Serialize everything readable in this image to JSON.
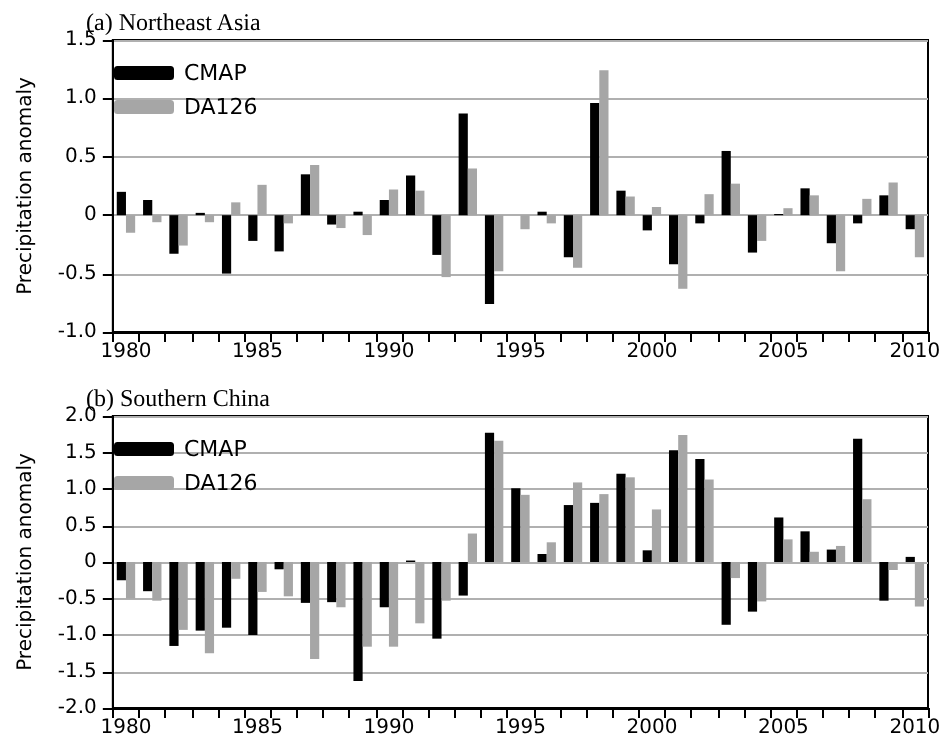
{
  "chart_data": [
    {
      "type": "bar",
      "title": "(a) Northeast Asia",
      "ylabel": "Precipitation anomaly",
      "categories": [
        "1980",
        null,
        null,
        null,
        null,
        "1985",
        null,
        null,
        null,
        null,
        "1990",
        null,
        null,
        null,
        null,
        "1995",
        null,
        null,
        null,
        null,
        "2000",
        null,
        null,
        null,
        null,
        "2005",
        null,
        null,
        null,
        null,
        "2010"
      ],
      "series": [
        {
          "name": "CMAP",
          "color": "#000000",
          "values": [
            0.2,
            0.13,
            -0.33,
            0.02,
            -0.5,
            -0.22,
            -0.31,
            0.35,
            -0.08,
            0.03,
            0.13,
            0.34,
            -0.34,
            0.87,
            -0.76,
            0,
            0.03,
            -0.36,
            0.96,
            0.21,
            -0.13,
            -0.42,
            -0.07,
            0.55,
            -0.32,
            0.01,
            0.23,
            -0.24,
            -0.07,
            0.17,
            -0.12
          ]
        },
        {
          "name": "DA126",
          "color": "#a6a6a6",
          "values": [
            -0.15,
            -0.06,
            -0.26,
            -0.06,
            0.11,
            0.26,
            -0.07,
            0.43,
            -0.11,
            -0.17,
            0.22,
            0.21,
            -0.53,
            0.4,
            -0.48,
            -0.12,
            -0.07,
            -0.45,
            1.24,
            0.16,
            0.07,
            -0.63,
            0.18,
            0.27,
            -0.22,
            0.06,
            0.17,
            -0.48,
            0.14,
            0.28,
            -0.36
          ]
        }
      ],
      "ylim": [
        -1,
        1.5
      ],
      "yticks": [
        {
          "value": -1,
          "label": "-1.0"
        },
        -0.5,
        0,
        0.5,
        {
          "value": 1,
          "label": "1.0"
        },
        1.5
      ],
      "grid": "y",
      "legend": "top left"
    },
    {
      "type": "bar",
      "title": "(b) Southern China",
      "ylabel": "Precipitation anomaly",
      "categories": [
        "1980",
        null,
        null,
        null,
        null,
        "1985",
        null,
        null,
        null,
        null,
        "1990",
        null,
        null,
        null,
        null,
        "1995",
        null,
        null,
        null,
        null,
        "2000",
        null,
        null,
        null,
        null,
        "2005",
        null,
        null,
        null,
        null,
        "2010"
      ],
      "series": [
        {
          "name": "CMAP",
          "color": "#000000",
          "values": [
            -0.25,
            -0.4,
            -1.15,
            -0.94,
            -0.9,
            -1.0,
            -0.1,
            -0.56,
            -0.55,
            -1.63,
            -0.62,
            0.02,
            -1.05,
            -0.46,
            1.77,
            1.01,
            0.11,
            0.78,
            0.81,
            1.21,
            0.16,
            1.53,
            1.41,
            -0.86,
            -0.68,
            0.61,
            0.42,
            0.17,
            1.69,
            -0.53,
            0.07
          ]
        },
        {
          "name": "DA126",
          "color": "#a6a6a6",
          "values": [
            -0.5,
            -0.53,
            -0.93,
            -1.25,
            -0.23,
            -0.41,
            -0.47,
            -1.33,
            -0.62,
            -1.16,
            -1.16,
            -0.84,
            -0.53,
            0.39,
            1.66,
            0.92,
            0.27,
            1.09,
            0.93,
            1.16,
            0.72,
            1.74,
            1.13,
            -0.22,
            -0.54,
            0.31,
            0.14,
            0.22,
            0.86,
            -0.11,
            -0.61
          ]
        }
      ],
      "ylim": [
        -2,
        2
      ],
      "yticks": [
        {
          "value": -2,
          "label": "-2.0"
        },
        -1.5,
        {
          "value": -1,
          "label": "-1.0"
        },
        -0.5,
        0,
        0.5,
        {
          "value": 1,
          "label": "1.0"
        },
        1.5,
        {
          "value": 2,
          "label": "2.0"
        }
      ],
      "grid": "y",
      "legend": "top left"
    }
  ]
}
